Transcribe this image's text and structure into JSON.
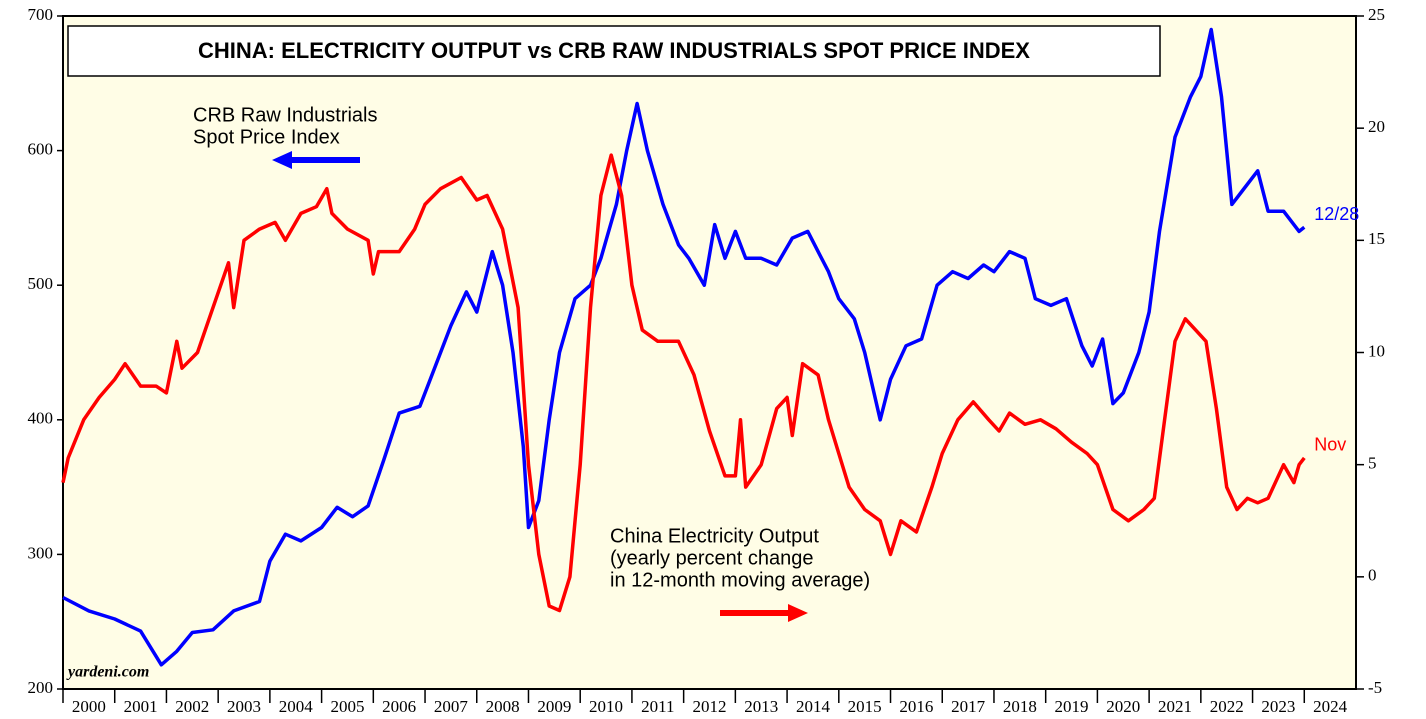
{
  "chart_data": {
    "type": "line",
    "title": "CHINA: ELECTRICITY OUTPUT vs CRB RAW INDUSTRIALS SPOT PRICE INDEX",
    "xlim": [
      2000,
      2025
    ],
    "xticks": [
      2000,
      2001,
      2002,
      2003,
      2004,
      2005,
      2006,
      2007,
      2008,
      2009,
      2010,
      2011,
      2012,
      2013,
      2014,
      2015,
      2016,
      2017,
      2018,
      2019,
      2020,
      2021,
      2022,
      2023,
      2024
    ],
    "ylim": [
      200,
      700
    ],
    "yticks": [
      200,
      300,
      400,
      500,
      600,
      700
    ],
    "y2lim": [
      -5,
      25
    ],
    "y2ticks": [
      -5,
      0,
      5,
      10,
      15,
      20,
      25
    ],
    "source": "yardeni.com",
    "annotations": [
      {
        "lines": [
          "CRB Raw Industrials",
          "Spot Price Index"
        ],
        "color": "#0000ff"
      },
      {
        "lines": [
          "China Electricity Output",
          "(yearly percent change",
          "in 12-month moving average)"
        ],
        "color": "#ff0000"
      }
    ],
    "series": [
      {
        "color": "#0000ff",
        "axis": "y",
        "end_label": "12/28",
        "x": [
          2000.0,
          2000.5,
          2001.0,
          2001.5,
          2001.9,
          2002.2,
          2002.5,
          2002.9,
          2003.3,
          2003.8,
          2004.0,
          2004.3,
          2004.6,
          2005.0,
          2005.3,
          2005.6,
          2005.9,
          2006.2,
          2006.5,
          2006.9,
          2007.2,
          2007.5,
          2007.8,
          2008.0,
          2008.3,
          2008.5,
          2008.7,
          2008.9,
          2009.0,
          2009.2,
          2009.4,
          2009.6,
          2009.9,
          2010.2,
          2010.4,
          2010.7,
          2010.9,
          2011.1,
          2011.3,
          2011.6,
          2011.9,
          2012.1,
          2012.4,
          2012.6,
          2012.8,
          2013.0,
          2013.2,
          2013.5,
          2013.8,
          2014.1,
          2014.4,
          2014.6,
          2014.8,
          2015.0,
          2015.3,
          2015.5,
          2015.8,
          2016.0,
          2016.3,
          2016.6,
          2016.9,
          2017.2,
          2017.5,
          2017.8,
          2018.0,
          2018.3,
          2018.6,
          2018.8,
          2019.1,
          2019.4,
          2019.7,
          2019.9,
          2020.1,
          2020.3,
          2020.5,
          2020.8,
          2021.0,
          2021.2,
          2021.5,
          2021.8,
          2022.0,
          2022.2,
          2022.4,
          2022.6,
          2022.8,
          2023.1,
          2023.3,
          2023.6,
          2023.9,
          2024.0
        ],
        "values": [
          268,
          258,
          252,
          243,
          218,
          228,
          242,
          244,
          258,
          265,
          295,
          315,
          310,
          320,
          335,
          328,
          336,
          370,
          405,
          410,
          440,
          470,
          495,
          480,
          525,
          500,
          450,
          380,
          320,
          340,
          400,
          450,
          490,
          500,
          520,
          560,
          600,
          635,
          600,
          560,
          530,
          520,
          500,
          545,
          520,
          540,
          520,
          520,
          515,
          535,
          540,
          525,
          510,
          490,
          475,
          450,
          400,
          430,
          455,
          460,
          500,
          510,
          505,
          515,
          510,
          525,
          520,
          490,
          485,
          490,
          455,
          440,
          460,
          412,
          420,
          450,
          480,
          540,
          610,
          640,
          655,
          690,
          640,
          560,
          570,
          585,
          555,
          555,
          540,
          543
        ]
      },
      {
        "color": "#ff0000",
        "axis": "y2",
        "end_label": "Nov",
        "x": [
          2000.0,
          2000.1,
          2000.4,
          2000.7,
          2001.0,
          2001.2,
          2001.5,
          2001.8,
          2002.0,
          2002.2,
          2002.3,
          2002.6,
          2002.9,
          2003.2,
          2003.3,
          2003.5,
          2003.8,
          2004.1,
          2004.3,
          2004.6,
          2004.9,
          2005.1,
          2005.2,
          2005.5,
          2005.9,
          2006.0,
          2006.1,
          2006.5,
          2006.8,
          2007.0,
          2007.3,
          2007.7,
          2008.0,
          2008.2,
          2008.5,
          2008.8,
          2009.0,
          2009.2,
          2009.4,
          2009.6,
          2009.8,
          2010.0,
          2010.2,
          2010.4,
          2010.6,
          2010.8,
          2011.0,
          2011.2,
          2011.5,
          2011.9,
          2012.2,
          2012.5,
          2012.8,
          2013.0,
          2013.1,
          2013.2,
          2013.5,
          2013.8,
          2014.0,
          2014.1,
          2014.3,
          2014.6,
          2014.8,
          2015.0,
          2015.2,
          2015.5,
          2015.8,
          2016.0,
          2016.2,
          2016.5,
          2016.8,
          2017.0,
          2017.3,
          2017.6,
          2017.9,
          2018.1,
          2018.3,
          2018.6,
          2018.9,
          2019.2,
          2019.5,
          2019.8,
          2020.0,
          2020.3,
          2020.6,
          2020.9,
          2021.1,
          2021.3,
          2021.5,
          2021.7,
          2021.9,
          2022.1,
          2022.3,
          2022.5,
          2022.7,
          2022.9,
          2023.1,
          2023.3,
          2023.6,
          2023.8,
          2023.9,
          2024.0
        ],
        "values": [
          4.2,
          5.3,
          7.0,
          8.0,
          8.8,
          9.5,
          8.5,
          8.5,
          8.2,
          10.5,
          9.3,
          10.0,
          12.0,
          14.0,
          12.0,
          15.0,
          15.5,
          15.8,
          15.0,
          16.2,
          16.5,
          17.3,
          16.2,
          15.5,
          15.0,
          13.5,
          14.5,
          14.5,
          15.5,
          16.6,
          17.3,
          17.8,
          16.8,
          17.0,
          15.5,
          12.0,
          5.0,
          1.0,
          -1.3,
          -1.5,
          0.0,
          5.0,
          12.0,
          17.0,
          18.8,
          17.0,
          13.0,
          11.0,
          10.5,
          10.5,
          9.0,
          6.5,
          4.5,
          4.5,
          7.0,
          4.0,
          5.0,
          7.5,
          8.0,
          6.3,
          9.5,
          9.0,
          7.0,
          5.5,
          4.0,
          3.0,
          2.5,
          1.0,
          2.5,
          2.0,
          4.0,
          5.5,
          7.0,
          7.8,
          7.0,
          6.5,
          7.3,
          6.8,
          7.0,
          6.6,
          6.0,
          5.5,
          5.0,
          3.0,
          2.5,
          3.0,
          3.5,
          7.0,
          10.5,
          11.5,
          11.0,
          10.5,
          7.5,
          4.0,
          3.0,
          3.5,
          3.3,
          3.5,
          5.0,
          4.2,
          5.0,
          5.3
        ]
      }
    ]
  }
}
